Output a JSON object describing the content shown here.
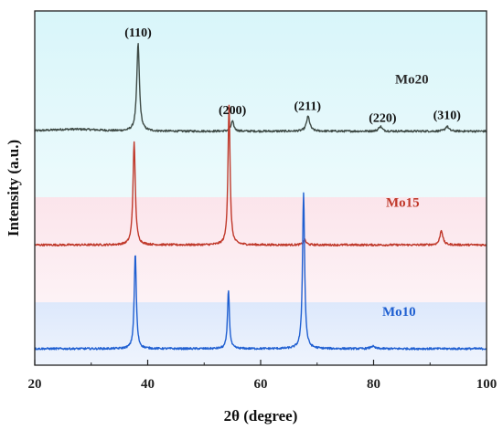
{
  "chart_data": {
    "type": "line",
    "xlabel": "2θ (degree)",
    "ylabel": "Intensity (a.u.)",
    "xlim": [
      20,
      100
    ],
    "xticks": [
      20,
      40,
      60,
      80,
      100
    ],
    "y_ticks_shown": false,
    "legend": "inline labels at right of each trace",
    "background_bands": [
      "#d6f5f9",
      "#fbe3ea",
      "#dbe7fb"
    ],
    "series": [
      {
        "name": "Mo20",
        "color": "#3f4b46",
        "baseline": 0.32,
        "peaks": [
          {
            "x": 38.3,
            "h": 0.53,
            "w": 0.28
          },
          {
            "x": 55.0,
            "h": 0.06,
            "w": 0.3
          },
          {
            "x": 68.4,
            "h": 0.09,
            "w": 0.35
          },
          {
            "x": 81.2,
            "h": 0.03,
            "w": 0.35
          },
          {
            "x": 93.0,
            "h": 0.03,
            "w": 0.35
          }
        ]
      },
      {
        "name": "Mo15",
        "color": "#c0392b",
        "baseline": -0.37,
        "peaks": [
          {
            "x": 37.6,
            "h": 0.62,
            "w": 0.25
          },
          {
            "x": 54.4,
            "h": 0.85,
            "w": 0.22
          },
          {
            "x": 67.8,
            "h": 0.03,
            "w": 0.3
          },
          {
            "x": 92.0,
            "h": 0.09,
            "w": 0.3
          }
        ]
      },
      {
        "name": "Mo10",
        "color": "#1f5fd1",
        "baseline": -1.0,
        "peaks": [
          {
            "x": 37.8,
            "h": 0.58,
            "w": 0.22
          },
          {
            "x": 54.3,
            "h": 0.36,
            "w": 0.2
          },
          {
            "x": 67.6,
            "h": 0.95,
            "w": 0.22
          },
          {
            "x": 79.8,
            "h": 0.015,
            "w": 0.4
          }
        ]
      }
    ],
    "peak_annotations": [
      {
        "text": "(110)",
        "x": 38.3
      },
      {
        "text": "(200)",
        "x": 55.0
      },
      {
        "text": "(211)",
        "x": 68.3
      },
      {
        "text": "(220)",
        "x": 81.6
      },
      {
        "text": "(310)",
        "x": 93.0
      }
    ]
  }
}
